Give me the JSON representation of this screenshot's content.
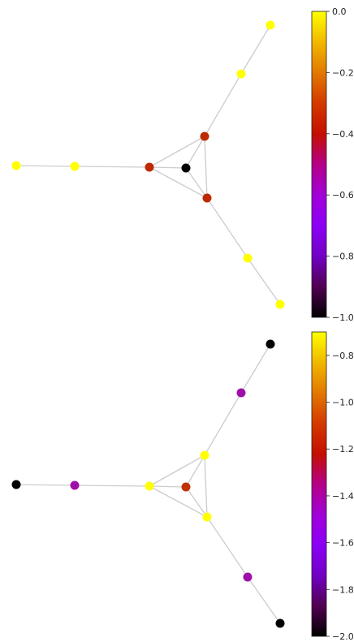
{
  "panels": [
    {
      "colorbar_range": [
        -1.0,
        0.0
      ],
      "colorbar_ticks": [
        "0.0",
        "−0.2",
        "−0.4",
        "−0.6",
        "−0.8",
        "−1.0"
      ],
      "tick_values": [
        0.0,
        -0.2,
        -0.4,
        -0.6,
        -0.8,
        -1.0
      ],
      "nodes": [
        {
          "id": "n0",
          "value": -1.0
        },
        {
          "id": "n1",
          "value": -0.45
        },
        {
          "id": "n2",
          "value": -0.45
        },
        {
          "id": "n3",
          "value": -0.45
        },
        {
          "id": "n4",
          "value": 0.0
        },
        {
          "id": "n5",
          "value": 0.0
        },
        {
          "id": "n6",
          "value": 0.0
        },
        {
          "id": "n7",
          "value": 0.0
        },
        {
          "id": "n8",
          "value": 0.0
        },
        {
          "id": "n9",
          "value": 0.0
        }
      ]
    },
    {
      "colorbar_range": [
        -2.0,
        -0.7
      ],
      "colorbar_ticks": [
        "−0.8",
        "−1.0",
        "−1.2",
        "−1.4",
        "−1.6",
        "−1.8",
        "−2.0"
      ],
      "tick_values": [
        -0.8,
        -1.0,
        -1.2,
        -1.4,
        -1.6,
        -1.8,
        -2.0
      ],
      "nodes": [
        {
          "id": "n0",
          "value": -1.25
        },
        {
          "id": "n1",
          "value": -0.7
        },
        {
          "id": "n2",
          "value": -0.7
        },
        {
          "id": "n3",
          "value": -0.7
        },
        {
          "id": "n4",
          "value": -1.5
        },
        {
          "id": "n5",
          "value": -1.5
        },
        {
          "id": "n6",
          "value": -1.5
        },
        {
          "id": "n7",
          "value": -2.0
        },
        {
          "id": "n8",
          "value": -2.0
        },
        {
          "id": "n9",
          "value": -2.0
        }
      ]
    }
  ],
  "edges": [
    [
      "n0",
      "n1"
    ],
    [
      "n0",
      "n2"
    ],
    [
      "n0",
      "n3"
    ],
    [
      "n1",
      "n2"
    ],
    [
      "n1",
      "n3"
    ],
    [
      "n2",
      "n3"
    ],
    [
      "n1",
      "n4"
    ],
    [
      "n4",
      "n7"
    ],
    [
      "n2",
      "n5"
    ],
    [
      "n5",
      "n8"
    ],
    [
      "n3",
      "n6"
    ],
    [
      "n6",
      "n9"
    ]
  ],
  "colormap": "gnuplot",
  "edge_color": "#cccccc"
}
